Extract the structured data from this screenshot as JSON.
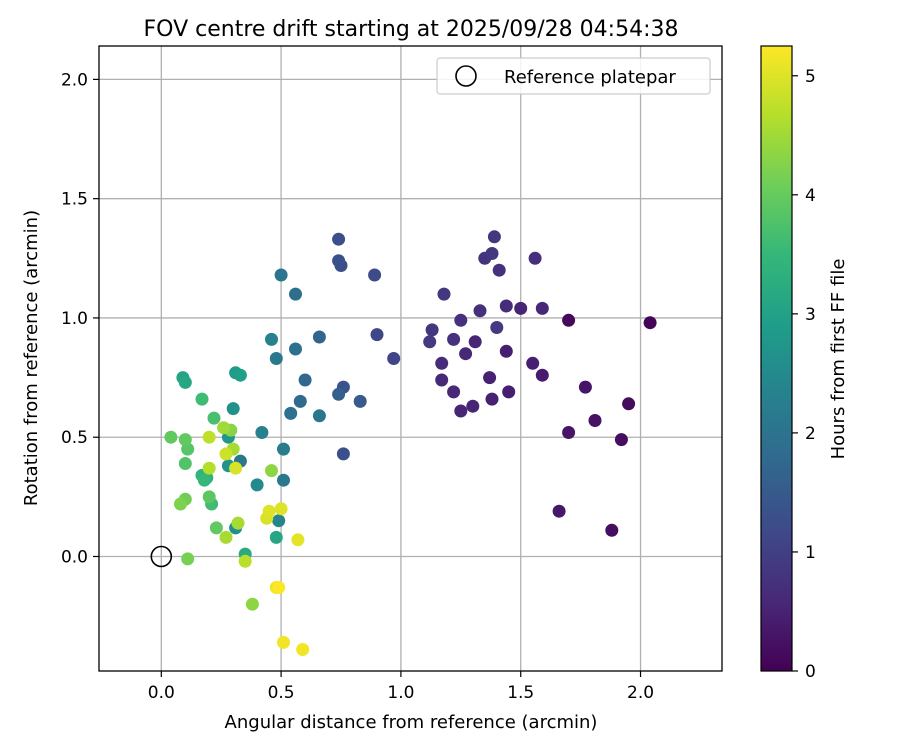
{
  "chart_data": {
    "type": "scatter",
    "title": "FOV centre drift starting at 2025/09/28 04:54:38",
    "xlabel": "Angular distance from reference (arcmin)",
    "ylabel": "Rotation from reference (arcmin)",
    "xlim": [
      -0.26,
      2.34
    ],
    "ylim": [
      -0.48,
      2.14
    ],
    "xticks": [
      0.0,
      0.5,
      1.0,
      1.5,
      2.0
    ],
    "yticks": [
      0.0,
      0.5,
      1.0,
      1.5,
      2.0
    ],
    "xtick_labels": [
      "0.0",
      "0.5",
      "1.0",
      "1.5",
      "2.0"
    ],
    "ytick_labels": [
      "0.0",
      "0.5",
      "1.0",
      "1.5",
      "2.0"
    ],
    "grid": true,
    "legend": {
      "placement": "top-right",
      "entries": [
        "Reference platepar"
      ]
    },
    "reference_point": {
      "x": 0.0,
      "y": 0.0,
      "label": "Reference platepar"
    },
    "colorbar": {
      "label": "Hours from first FF file",
      "min": 0,
      "max": 5.25,
      "ticks": [
        0,
        1,
        2,
        3,
        4,
        5
      ],
      "tick_labels": [
        "0",
        "1",
        "2",
        "3",
        "4",
        "5"
      ],
      "colormap": "viridis"
    },
    "colormap_stops": [
      "#440154",
      "#482878",
      "#3e4989",
      "#31688e",
      "#26828e",
      "#1f9e89",
      "#35b779",
      "#6ece58",
      "#b5de2b",
      "#fde725"
    ],
    "series": [
      {
        "name": "FOV centre",
        "points": [
          [
            2.04,
            0.98,
            0.05
          ],
          [
            1.7,
            0.99,
            0.1
          ],
          [
            1.95,
            0.64,
            0.15
          ],
          [
            1.92,
            0.49,
            0.2
          ],
          [
            1.88,
            0.11,
            0.2
          ],
          [
            1.81,
            0.57,
            0.25
          ],
          [
            1.77,
            0.71,
            0.3
          ],
          [
            1.7,
            0.52,
            0.3
          ],
          [
            1.66,
            0.19,
            0.35
          ],
          [
            1.59,
            0.76,
            0.4
          ],
          [
            1.55,
            0.81,
            0.45
          ],
          [
            1.45,
            0.69,
            0.45
          ],
          [
            1.38,
            0.66,
            0.5
          ],
          [
            1.3,
            0.63,
            0.55
          ],
          [
            1.25,
            0.61,
            0.55
          ],
          [
            1.22,
            0.69,
            0.6
          ],
          [
            1.17,
            0.74,
            0.6
          ],
          [
            1.17,
            0.81,
            0.65
          ],
          [
            1.27,
            0.85,
            0.6
          ],
          [
            1.31,
            0.9,
            0.55
          ],
          [
            1.37,
            0.75,
            0.5
          ],
          [
            1.44,
            0.86,
            0.45
          ],
          [
            1.5,
            1.04,
            0.55
          ],
          [
            1.59,
            1.04,
            0.6
          ],
          [
            1.56,
            1.25,
            0.7
          ],
          [
            1.44,
            1.05,
            0.65
          ],
          [
            1.33,
            1.03,
            0.7
          ],
          [
            1.22,
            0.91,
            0.75
          ],
          [
            1.25,
            0.99,
            0.75
          ],
          [
            1.13,
            0.95,
            0.85
          ],
          [
            1.12,
            0.9,
            0.9
          ],
          [
            1.18,
            1.1,
            0.85
          ],
          [
            1.41,
            1.2,
            0.75
          ],
          [
            1.35,
            1.25,
            0.8
          ],
          [
            1.38,
            1.27,
            0.85
          ],
          [
            1.39,
            1.34,
            0.85
          ],
          [
            1.4,
            0.96,
            0.9
          ],
          [
            0.97,
            0.83,
            1.1
          ],
          [
            0.9,
            0.93,
            1.15
          ],
          [
            0.89,
            1.18,
            1.2
          ],
          [
            0.75,
            1.22,
            1.25
          ],
          [
            0.74,
            1.24,
            1.3
          ],
          [
            0.74,
            1.33,
            1.3
          ],
          [
            0.76,
            0.71,
            1.35
          ],
          [
            0.76,
            0.43,
            1.3
          ],
          [
            0.74,
            0.68,
            1.6
          ],
          [
            0.83,
            0.65,
            1.5
          ],
          [
            0.66,
            0.92,
            1.7
          ],
          [
            0.6,
            0.74,
            1.75
          ],
          [
            0.58,
            0.65,
            1.8
          ],
          [
            0.54,
            0.6,
            1.95
          ],
          [
            0.56,
            0.87,
            1.95
          ],
          [
            0.66,
            0.59,
            2.05
          ],
          [
            0.56,
            1.1,
            1.9
          ],
          [
            0.5,
            1.18,
            2.05
          ],
          [
            0.48,
            0.83,
            2.1
          ],
          [
            0.46,
            0.91,
            2.3
          ],
          [
            0.42,
            0.52,
            2.3
          ],
          [
            0.33,
            0.4,
            2.1
          ],
          [
            0.51,
            0.45,
            2.2
          ],
          [
            0.51,
            0.32,
            2.1
          ],
          [
            0.49,
            0.15,
            2.4
          ],
          [
            0.4,
            0.3,
            2.5
          ],
          [
            0.31,
            0.12,
            2.6
          ],
          [
            0.3,
            0.62,
            2.65
          ],
          [
            0.28,
            0.38,
            2.7
          ],
          [
            0.28,
            0.5,
            2.75
          ],
          [
            0.31,
            0.77,
            2.85
          ],
          [
            0.33,
            0.76,
            2.95
          ],
          [
            0.09,
            0.75,
            3.05
          ],
          [
            0.1,
            0.73,
            3.1
          ],
          [
            0.48,
            0.08,
            3.1
          ],
          [
            0.35,
            0.01,
            3.2
          ],
          [
            0.19,
            0.33,
            3.35
          ],
          [
            0.17,
            0.34,
            3.4
          ],
          [
            0.18,
            0.32,
            3.5
          ],
          [
            0.21,
            0.22,
            3.6
          ],
          [
            0.17,
            0.66,
            3.6
          ],
          [
            0.22,
            0.58,
            3.7
          ],
          [
            0.1,
            0.39,
            3.8
          ],
          [
            0.11,
            0.45,
            3.85
          ],
          [
            0.1,
            0.49,
            3.95
          ],
          [
            0.04,
            0.5,
            3.95
          ],
          [
            0.23,
            0.12,
            3.95
          ],
          [
            0.2,
            0.25,
            3.9
          ],
          [
            0.1,
            0.24,
            4.1
          ],
          [
            0.08,
            0.22,
            4.2
          ],
          [
            0.11,
            -0.01,
            4.15
          ],
          [
            0.29,
            0.53,
            4.3
          ],
          [
            0.38,
            -0.2,
            4.35
          ],
          [
            0.46,
            0.36,
            4.35
          ],
          [
            0.26,
            0.54,
            4.5
          ],
          [
            0.32,
            0.14,
            4.55
          ],
          [
            0.27,
            0.08,
            4.55
          ],
          [
            0.3,
            0.45,
            4.55
          ],
          [
            0.2,
            0.37,
            4.65
          ],
          [
            0.35,
            -0.02,
            4.7
          ],
          [
            0.2,
            0.5,
            4.75
          ],
          [
            0.27,
            0.43,
            4.85
          ],
          [
            0.31,
            0.37,
            4.95
          ],
          [
            0.44,
            0.16,
            4.95
          ],
          [
            0.45,
            0.19,
            5.0
          ],
          [
            0.5,
            0.2,
            5.0
          ],
          [
            0.57,
            0.07,
            5.05
          ],
          [
            0.48,
            -0.13,
            5.1
          ],
          [
            0.51,
            -0.36,
            5.15
          ],
          [
            0.59,
            -0.39,
            5.15
          ],
          [
            0.49,
            -0.13,
            5.25
          ]
        ]
      }
    ]
  }
}
